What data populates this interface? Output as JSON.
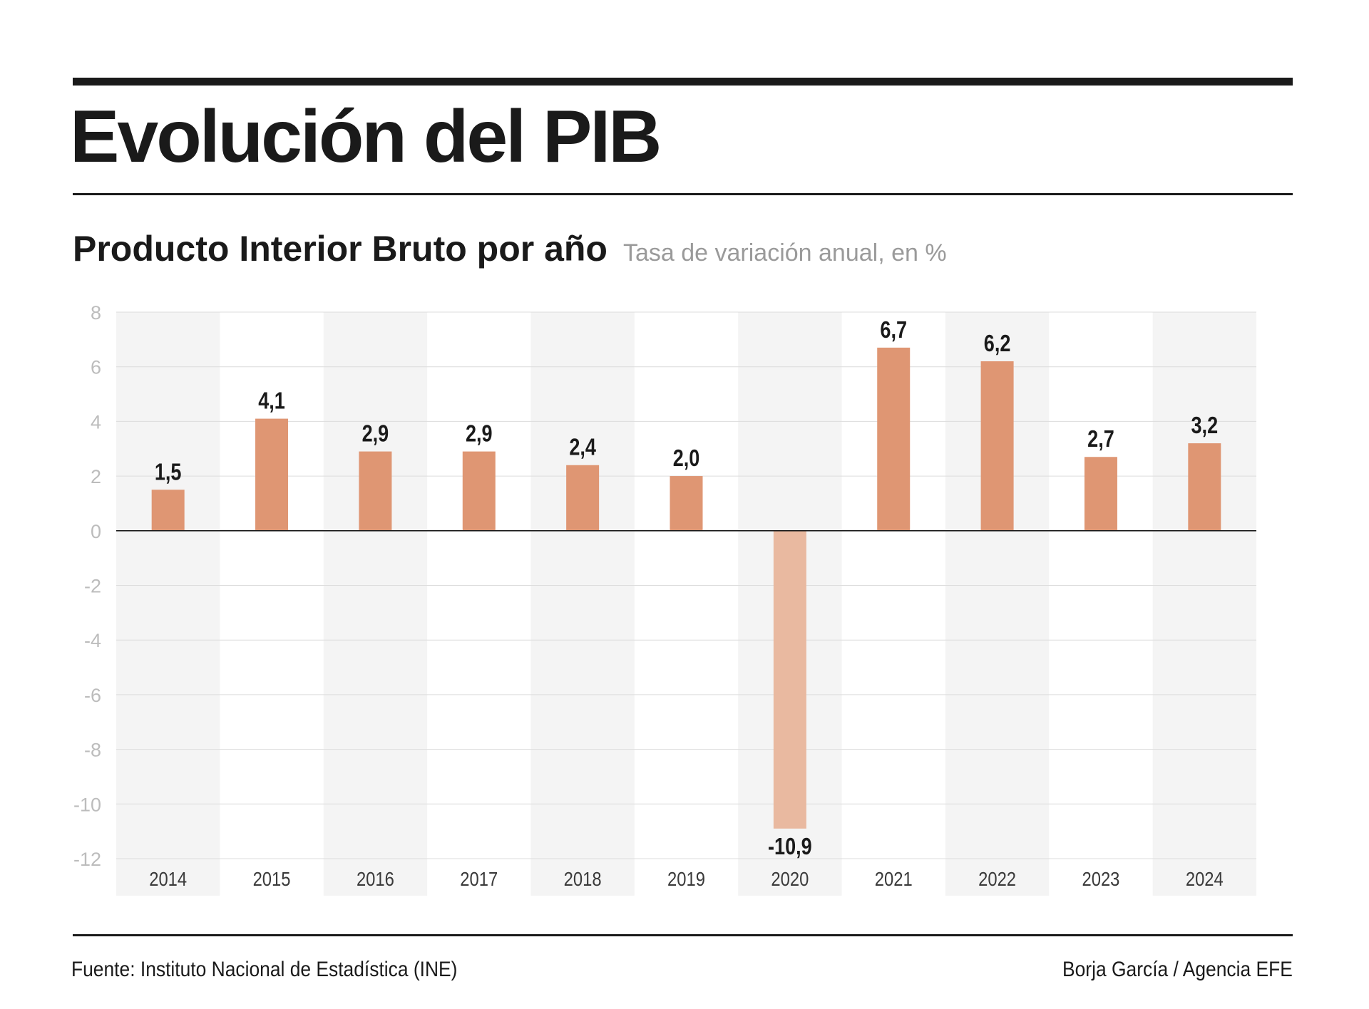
{
  "header": {
    "title": "Evolución del PIB",
    "subtitle": "Producto Interior Bruto por año",
    "unit": "Tasa de variación anual, en %"
  },
  "footer": {
    "source": "Fuente: Instituto Nacional de Estadística (INE)",
    "credit": "Borja García / Agencia EFE"
  },
  "colors": {
    "bar": "#df9673",
    "bar_negative": "#e9b9a0",
    "band": "#f4f4f4",
    "grid": "#dcdcdc",
    "tick_text": "#bcbcbc"
  },
  "chart_data": {
    "type": "bar",
    "title": "Producto Interior Bruto por año",
    "subtitle": "Tasa de variación anual, en %",
    "xlabel": "",
    "ylabel": "",
    "categories": [
      "2014",
      "2015",
      "2016",
      "2017",
      "2018",
      "2019",
      "2020",
      "2021",
      "2022",
      "2023",
      "2024"
    ],
    "values": [
      1.5,
      4.1,
      2.9,
      2.9,
      2.4,
      2.0,
      -10.9,
      6.7,
      6.2,
      2.7,
      3.2
    ],
    "data_labels": [
      "1,5",
      "4,1",
      "2,9",
      "2,9",
      "2,4",
      "2,0",
      "-10,9",
      "6,7",
      "6,2",
      "2,7",
      "3,2"
    ],
    "yticks": [
      8,
      6,
      4,
      2,
      0,
      -2,
      -4,
      -6,
      -8,
      -10,
      -12
    ],
    "ylim": [
      -12,
      8
    ],
    "grid": true,
    "legend": "none"
  }
}
